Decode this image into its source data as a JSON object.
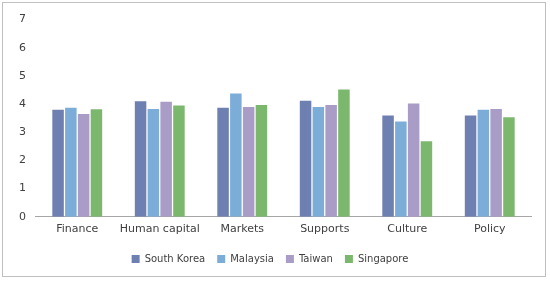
{
  "chart_data": {
    "type": "bar",
    "categories": [
      "Finance",
      "Human capital",
      "Markets",
      "Supports",
      "Culture",
      "Policy"
    ],
    "series": [
      {
        "name": "South Korea",
        "color": "#6e7fb1",
        "values": [
          3.8,
          4.1,
          3.87,
          4.12,
          3.6,
          3.6
        ]
      },
      {
        "name": "Malaysia",
        "color": "#7cadd8",
        "values": [
          3.87,
          3.83,
          4.38,
          3.9,
          3.38,
          3.8
        ]
      },
      {
        "name": "Taiwan",
        "color": "#a99cc6",
        "values": [
          3.65,
          4.08,
          3.9,
          3.97,
          4.02,
          3.83
        ]
      },
      {
        "name": "Singapore",
        "color": "#7bb86e",
        "values": [
          3.82,
          3.95,
          3.97,
          4.52,
          2.68,
          3.53
        ]
      }
    ],
    "ylim": [
      0,
      7
    ],
    "yticks": [
      0,
      1,
      2,
      3,
      4,
      5,
      6,
      7
    ],
    "grid": false,
    "legend": "bottom"
  }
}
